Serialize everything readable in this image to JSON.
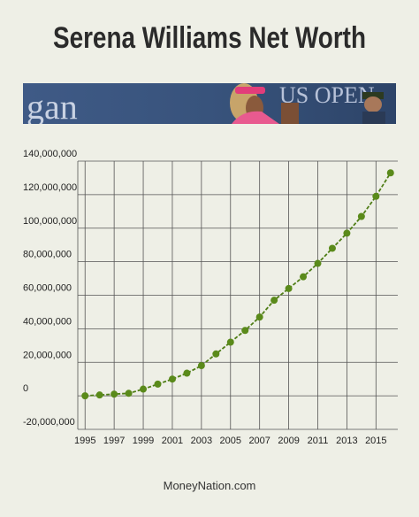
{
  "page": {
    "title": "Serena Williams Net Worth",
    "footer": "MoneyNation.com",
    "banner_text": "gan",
    "banner_text_right": "US OPEN"
  },
  "colors": {
    "background": "#eeefe6",
    "line": "#4f7d16",
    "marker": "#5a8a1a",
    "grid": "#555555"
  },
  "chart_data": {
    "type": "line",
    "title": "",
    "xlabel": "",
    "ylabel": "",
    "x": [
      1995,
      1996,
      1997,
      1998,
      1999,
      2000,
      2001,
      2002,
      2003,
      2004,
      2005,
      2006,
      2007,
      2008,
      2009,
      2010,
      2011,
      2012,
      2013,
      2014,
      2015,
      2016
    ],
    "series": [
      {
        "values": [
          0,
          500000,
          1000000,
          1500000,
          4000000,
          7000000,
          10000000,
          13500000,
          18000000,
          25000000,
          32000000,
          39000000,
          47000000,
          57000000,
          64000000,
          71000000,
          79000000,
          88000000,
          97000000,
          107000000,
          119000000,
          133000000
        ]
      }
    ],
    "xlim": [
      1994.5,
      2016.5
    ],
    "ylim": [
      -20000000,
      140000000
    ],
    "x_ticks": [
      "1995",
      "1997",
      "1999",
      "2001",
      "2003",
      "2005",
      "2007",
      "2009",
      "2011",
      "2013",
      "2015"
    ],
    "y_ticks": [
      "140,000,000",
      "120,000,000",
      "100,000,000",
      "80,000,000",
      "60,000,000",
      "40,000,000",
      "20,000,000",
      "0",
      "-20,000,000"
    ],
    "y_tick_values": [
      140000000,
      120000000,
      100000000,
      80000000,
      60000000,
      40000000,
      20000000,
      0,
      -20000000
    ],
    "grid": true,
    "legend": "none"
  }
}
